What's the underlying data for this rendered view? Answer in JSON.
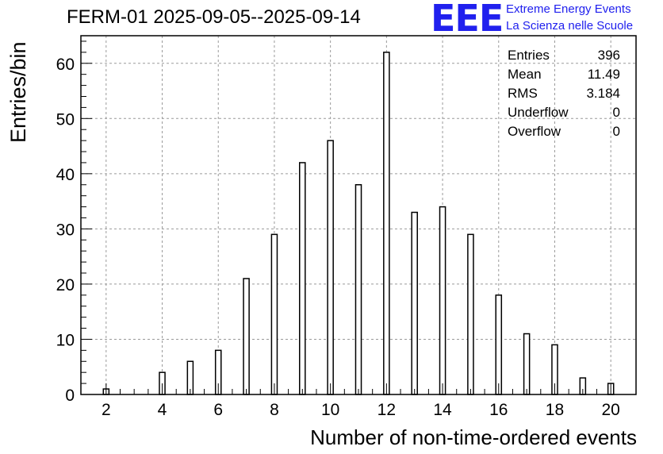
{
  "header": {
    "title": "FERM-01 2025-09-05--2025-09-14"
  },
  "logo": {
    "mark": "EEE",
    "line1": "Extreme Energy Events",
    "line2": "La Scienza nelle Scuole",
    "color": "#2020ee"
  },
  "stats": {
    "entries_label": "Entries",
    "entries_value": "396",
    "mean_label": "Mean",
    "mean_value": "11.49",
    "rms_label": "RMS",
    "rms_value": "3.184",
    "underflow_label": "Underflow",
    "underflow_value": "0",
    "overflow_label": "Overflow",
    "overflow_value": "0"
  },
  "chart_data": {
    "type": "bar",
    "xlabel": "Number of non-time-ordered events",
    "ylabel": "Entries/bin",
    "xlim": [
      1.1,
      20.9
    ],
    "ylim": [
      0,
      65
    ],
    "x_ticks": [
      "2",
      "4",
      "6",
      "8",
      "10",
      "12",
      "14",
      "16",
      "18",
      "20"
    ],
    "y_ticks": [
      "0",
      "10",
      "20",
      "30",
      "40",
      "50",
      "60"
    ],
    "x": [
      2,
      4,
      5,
      6,
      7,
      8,
      9,
      10,
      11,
      12,
      13,
      14,
      15,
      16,
      17,
      18,
      19,
      20
    ],
    "values": [
      1,
      4,
      6,
      8,
      21,
      29,
      42,
      46,
      38,
      62,
      33,
      34,
      29,
      18,
      11,
      9,
      3,
      2
    ],
    "grid": true
  }
}
